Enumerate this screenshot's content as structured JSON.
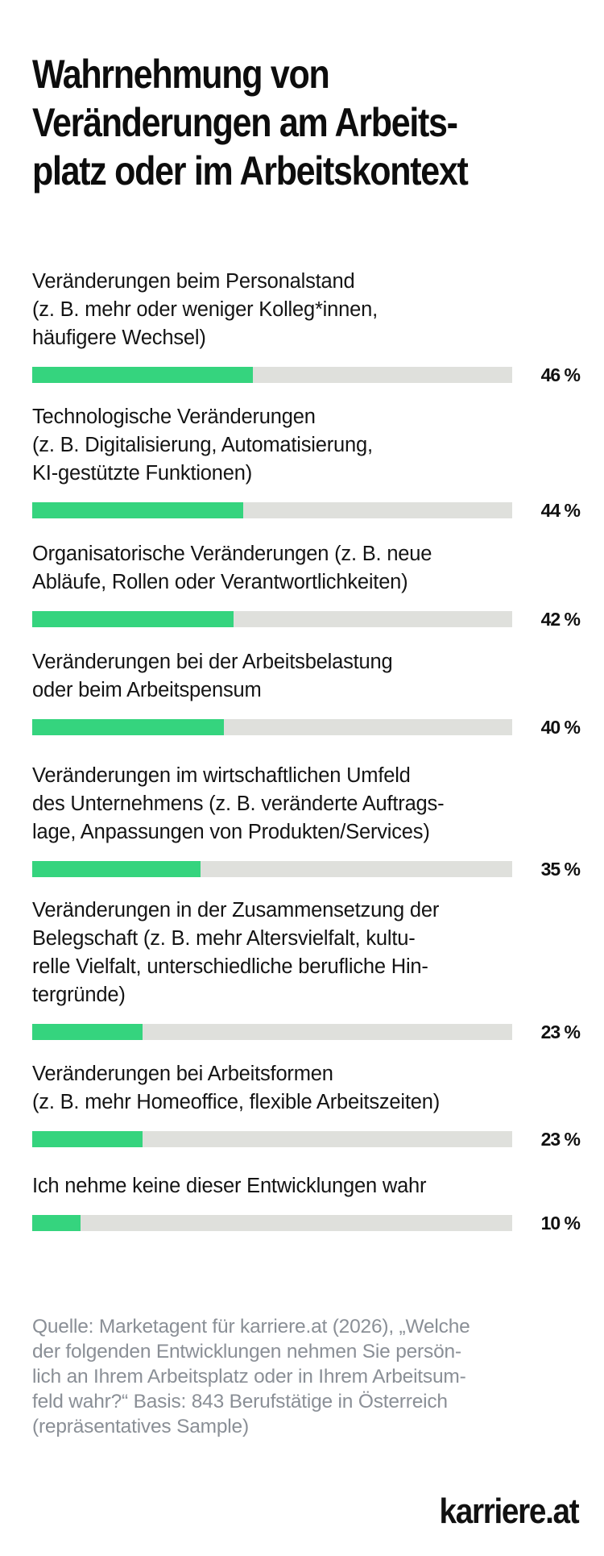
{
  "chart_data": {
    "type": "bar",
    "orientation": "horizontal",
    "title_lines": [
      "Wahrnehmung von",
      "Veränderungen am Arbeits-",
      "platz oder im Arbeitskontext"
    ],
    "xlim": [
      0,
      100
    ],
    "value_suffix": " %",
    "categories": [
      [
        "Veränderungen beim Personalstand",
        "(z. B. mehr oder weniger Kolleg*innen,",
        "häufigere Wechsel)"
      ],
      [
        "Technologische Veränderungen",
        "(z. B. Digitalisierung, Automatisierung,",
        "KI-gestützte Funktionen)"
      ],
      [
        "Organisatorische Veränderungen (z. B. neue",
        "Abläufe, Rollen oder Verantwortlichkeiten)"
      ],
      [
        "Veränderungen bei der Arbeitsbelastung",
        "oder beim Arbeitspensum"
      ],
      [
        "Veränderungen im wirtschaftlichen Umfeld",
        "des Unternehmens (z. B. veränderte Auftrags-",
        "lage, Anpassungen von Produkten/Services)"
      ],
      [
        "Veränderungen in der Zusammensetzung der",
        "Belegschaft (z. B. mehr Altersvielfalt, kultu-",
        "relle Vielfalt, unterschiedliche berufliche Hin-",
        "tergründe)"
      ],
      [
        "Veränderungen bei Arbeitsformen",
        "(z. B. mehr Homeoffice, flexible Arbeitszeiten)"
      ],
      [
        "Ich nehme keine dieser Entwicklungen wahr"
      ]
    ],
    "values": [
      46,
      44,
      42,
      40,
      35,
      23,
      23,
      10
    ],
    "value_labels": [
      "46 %",
      "44 %",
      "42 %",
      "40 %",
      "35 %",
      "23 %",
      "23 %",
      "10 %"
    ],
    "colors": {
      "bar_fill": "#35d47e",
      "bar_track": "#dfe0dc"
    }
  },
  "source_lines": [
    "Quelle: Marketagent für karriere.at (2026), „Welche",
    "der folgenden Entwicklungen nehmen Sie persön-",
    "lich an Ihrem Arbeitsplatz oder in Ihrem Arbeitsum-",
    "feld wahr?“ Basis: 843 Berufstätige in Österreich",
    "(repräsentatives Sample)"
  ],
  "brand": {
    "logo_text": "karriere.at"
  }
}
